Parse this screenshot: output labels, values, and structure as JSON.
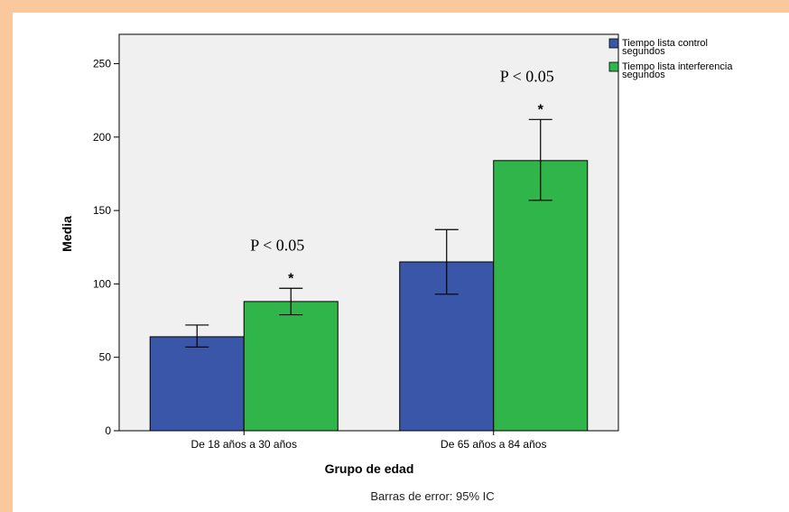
{
  "chart_data": {
    "type": "bar",
    "title": "",
    "xlabel": "Grupo de edad",
    "ylabel": "Media",
    "ylim": [
      0,
      270
    ],
    "yticks": [
      0,
      50,
      100,
      150,
      200,
      250
    ],
    "categories": [
      "De 18 años a 30 años",
      "De 65 años a 84 años"
    ],
    "series": [
      {
        "name": "Tiempo lista control segundos",
        "color": "#3a56a8",
        "values": [
          64,
          115
        ],
        "error_low": [
          57,
          93
        ],
        "error_high": [
          72,
          137
        ]
      },
      {
        "name": "Tiempo lista interferencia segundos",
        "color": "#2fb54a",
        "values": [
          88,
          184
        ],
        "error_low": [
          79,
          157
        ],
        "error_high": [
          97,
          212
        ]
      }
    ],
    "annotations": [
      {
        "category_index": 0,
        "p_text": "P < 0.05",
        "star": "*"
      },
      {
        "category_index": 1,
        "p_text": "P < 0.05",
        "star": "*"
      }
    ],
    "legend": {
      "position": "top-right",
      "entries": [
        [
          "Tiempo lista control",
          "segundos"
        ],
        [
          "Tiempo lista interferencia",
          "segundos"
        ]
      ]
    },
    "footnote": "Barras de error: 95% IC",
    "grid": false,
    "plot_background": "#f0f0f0"
  }
}
